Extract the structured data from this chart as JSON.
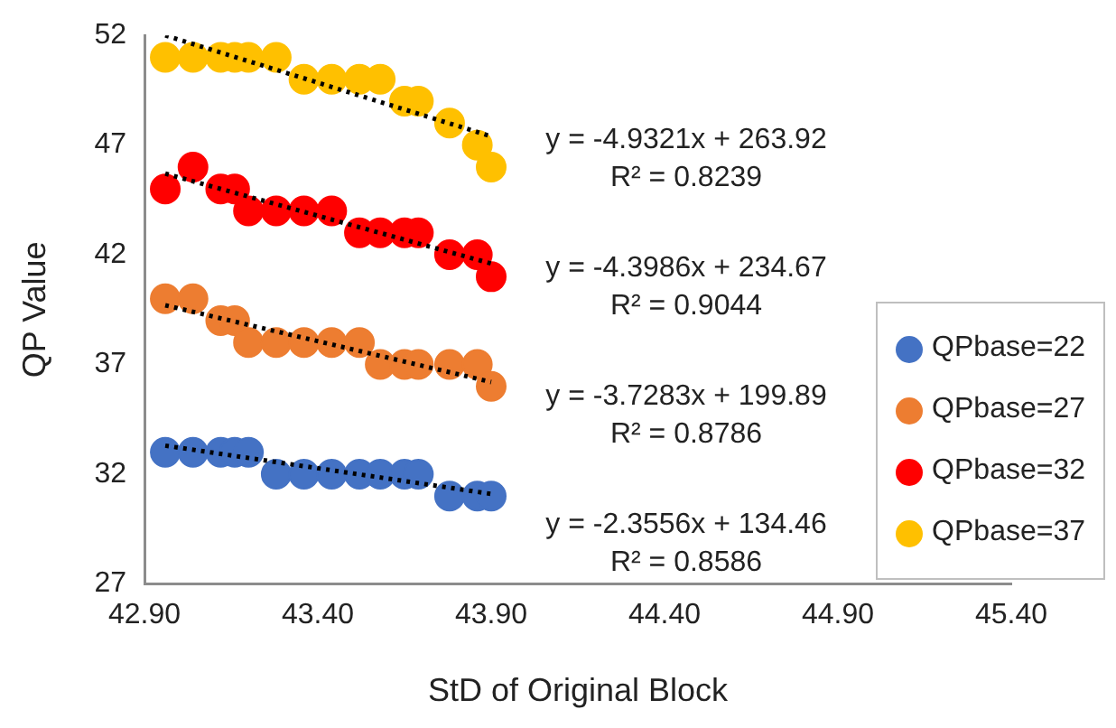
{
  "chart_data": {
    "type": "scatter",
    "xlabel": "StD of Original Block",
    "ylabel": "QP Value",
    "x": [
      42.96,
      43.04,
      43.12,
      43.16,
      43.2,
      43.28,
      43.36,
      43.44,
      43.52,
      43.58,
      43.65,
      43.69,
      43.78,
      43.86,
      43.9
    ],
    "series": [
      {
        "name": "QPbase=22",
        "color": "#4472c4",
        "values": [
          33,
          33,
          33,
          33,
          33,
          32,
          32,
          32,
          32,
          32,
          32,
          32,
          31,
          31,
          31
        ]
      },
      {
        "name": "QPbase=27",
        "color": "#ed7d31",
        "values": [
          40,
          40,
          39,
          39,
          38,
          38,
          38,
          38,
          38,
          37,
          37,
          37,
          37,
          37,
          36
        ]
      },
      {
        "name": "QPbase=32",
        "color": "#ff0000",
        "values": [
          45,
          46,
          45,
          45,
          44,
          44,
          44,
          44,
          43,
          43,
          43,
          43,
          42,
          42,
          41
        ]
      },
      {
        "name": "QPbase=37",
        "color": "#ffc000",
        "values": [
          51,
          51,
          51,
          51,
          51,
          51,
          50,
          50,
          50,
          50,
          49,
          49,
          48,
          47,
          46
        ]
      },
      {
        "type": "line",
        "color": "#000000",
        "line_style": "dotted",
        "marker": "none",
        "values": [
          33.3,
          null,
          null,
          null,
          null,
          null,
          null,
          null,
          null,
          null,
          null,
          null,
          null,
          null,
          31.1
        ]
      },
      {
        "type": "line",
        "color": "#000000",
        "line_style": "dotted",
        "marker": "none",
        "values": [
          39.7,
          null,
          null,
          null,
          null,
          null,
          null,
          null,
          null,
          null,
          null,
          null,
          null,
          null,
          36.2
        ]
      },
      {
        "type": "line",
        "color": "#000000",
        "line_style": "dotted",
        "marker": "none",
        "values": [
          45.7,
          null,
          null,
          null,
          null,
          null,
          null,
          null,
          null,
          null,
          null,
          null,
          null,
          null,
          41.6
        ]
      },
      {
        "type": "line",
        "color": "#000000",
        "line_style": "dotted",
        "marker": "none",
        "values": [
          52,
          null,
          null,
          null,
          null,
          null,
          null,
          null,
          null,
          null,
          null,
          null,
          null,
          null,
          47.4
        ]
      }
    ],
    "xlim": [
      42.9,
      45.4
    ],
    "xticks": [
      {
        "value": 42.9,
        "label": "42.90"
      },
      {
        "value": 43.4,
        "label": "43.40"
      },
      {
        "value": 43.9,
        "label": "43.90"
      },
      {
        "value": 44.4,
        "label": "44.40"
      },
      {
        "value": 44.9,
        "label": "44.90"
      },
      {
        "value": 45.4,
        "label": "45.40"
      }
    ],
    "ylim": [
      27,
      52
    ],
    "yticks": [
      27,
      32,
      37,
      42,
      47,
      52
    ],
    "grid": false,
    "legend": "bottom right",
    "marker": "circle",
    "annotations": [
      "y = -4.9321x + 263.92",
      "R² = 0.8239",
      "y = -4.3986x + 234.67",
      "R² = 0.9044",
      "y = -3.7283x + 199.89",
      "R² = 0.8786",
      "y = -2.3556x + 134.46",
      "R² = 0.8586"
    ]
  }
}
